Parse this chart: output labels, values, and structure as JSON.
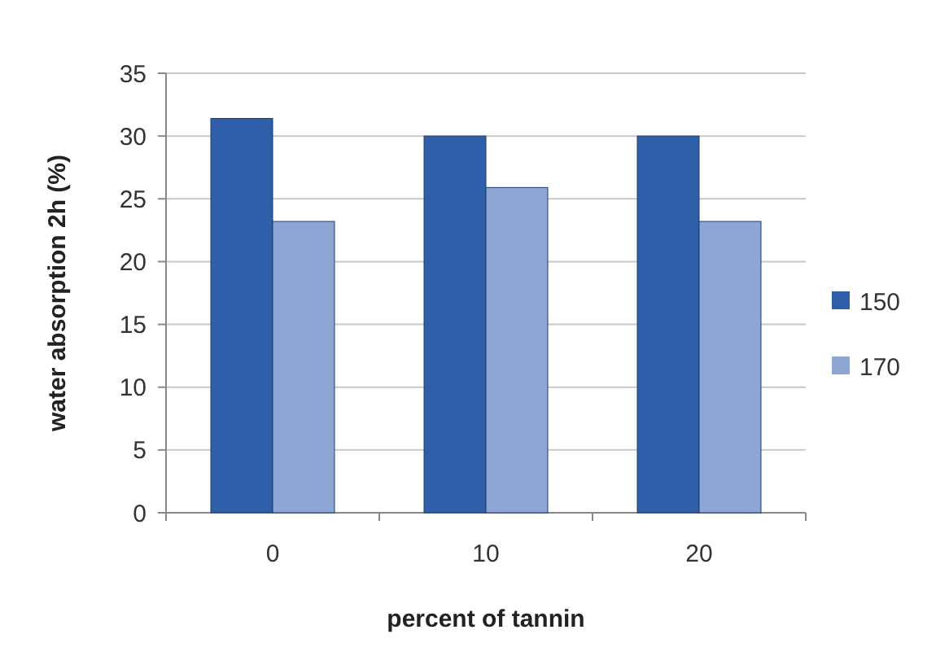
{
  "chart_data": {
    "type": "bar",
    "xlabel": "percent of tannin",
    "ylabel": "water absorption 2h (%)",
    "categories": [
      "0",
      "10",
      "20"
    ],
    "series": [
      {
        "name": "150",
        "color": "#2f5fa8",
        "values": [
          31.4,
          30,
          30
        ]
      },
      {
        "name": "170",
        "color": "#8ea6d4",
        "values": [
          23.2,
          25.9,
          23.2
        ]
      }
    ],
    "ylim": [
      0,
      35
    ],
    "yticks": [
      0,
      5,
      10,
      15,
      20,
      25,
      30,
      35
    ],
    "grid": "y",
    "legend": "right"
  }
}
